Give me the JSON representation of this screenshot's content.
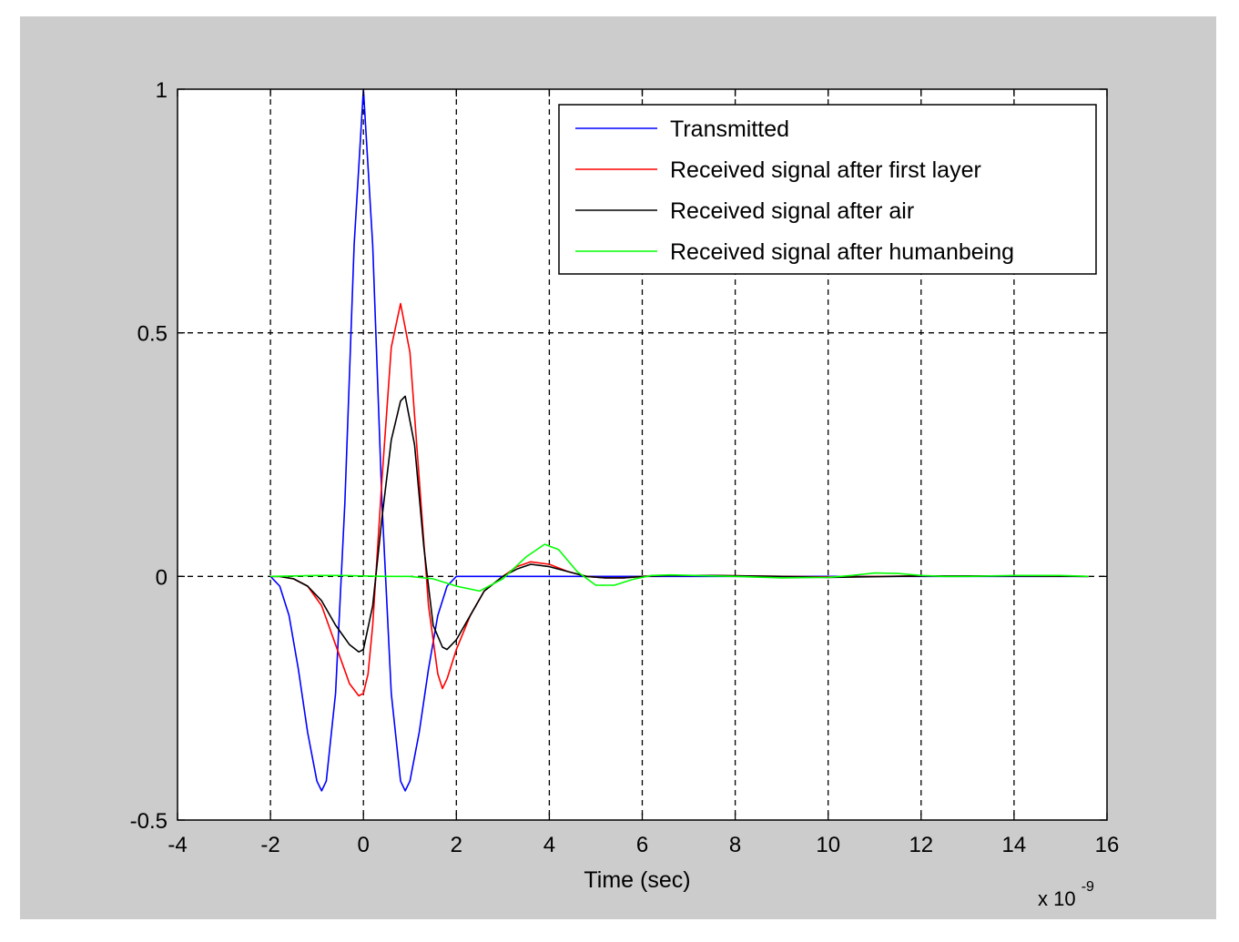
{
  "chart_data": {
    "type": "line",
    "title": "",
    "xlabel": "Time (sec)",
    "ylabel": "",
    "x_exponent_base": "x 10",
    "x_exponent_power": "-9",
    "xlim": [
      -4,
      16
    ],
    "ylim": [
      -0.5,
      1
    ],
    "xticks": [
      -4,
      -2,
      0,
      2,
      4,
      6,
      8,
      10,
      12,
      14,
      16
    ],
    "yticks": [
      -0.5,
      0,
      0.5,
      1
    ],
    "xtick_labels": [
      "-4",
      "-2",
      "0",
      "2",
      "4",
      "6",
      "8",
      "10",
      "12",
      "14",
      "16"
    ],
    "ytick_labels": [
      "-0.5",
      "0",
      "0.5",
      "1"
    ],
    "grid": true,
    "legend_position": "top-right",
    "series": [
      {
        "name": "Transmitted",
        "color": "#0000ff",
        "x": [
          -2.0,
          -1.8,
          -1.6,
          -1.4,
          -1.2,
          -1.0,
          -0.9,
          -0.8,
          -0.6,
          -0.4,
          -0.2,
          0.0,
          0.2,
          0.4,
          0.6,
          0.8,
          0.9,
          1.0,
          1.2,
          1.4,
          1.6,
          1.8,
          2.0,
          2.2,
          2.6,
          3.0,
          3.5,
          4.0,
          5.0,
          6.0,
          6.5,
          7.5,
          9.0,
          10.0,
          12.0,
          14.0,
          15.6
        ],
        "y": [
          0.0,
          -0.02,
          -0.08,
          -0.19,
          -0.32,
          -0.42,
          -0.44,
          -0.42,
          -0.24,
          0.15,
          0.68,
          1.0,
          0.68,
          0.15,
          -0.24,
          -0.42,
          -0.44,
          -0.42,
          -0.32,
          -0.19,
          -0.08,
          -0.02,
          0.0,
          0.0,
          0.0,
          0.0,
          0.0,
          0.0,
          0.0,
          0.0,
          0.0,
          0.0,
          0.0,
          0.0,
          0.0,
          0.0,
          0.0
        ]
      },
      {
        "name": "Received signal after first layer",
        "color": "#ff0000",
        "x": [
          -2.0,
          -1.8,
          -1.5,
          -1.2,
          -0.9,
          -0.6,
          -0.3,
          -0.1,
          0.0,
          0.1,
          0.2,
          0.4,
          0.6,
          0.8,
          1.0,
          1.2,
          1.4,
          1.6,
          1.7,
          1.8,
          2.0,
          2.3,
          2.6,
          3.0,
          3.3,
          3.6,
          4.0,
          4.4,
          4.8,
          5.2,
          5.6,
          6.0,
          6.5,
          7.5,
          9.0,
          10.0,
          12.0,
          14.0,
          15.6
        ],
        "y": [
          0.0,
          0.0,
          -0.005,
          -0.02,
          -0.06,
          -0.14,
          -0.22,
          -0.245,
          -0.24,
          -0.2,
          -0.1,
          0.2,
          0.47,
          0.56,
          0.46,
          0.2,
          -0.06,
          -0.2,
          -0.23,
          -0.21,
          -0.15,
          -0.08,
          -0.03,
          0.0,
          0.02,
          0.03,
          0.025,
          0.01,
          0.0,
          -0.003,
          -0.003,
          0.0,
          0.002,
          0.002,
          0.0,
          -0.001,
          0.001,
          0.001,
          0.0
        ]
      },
      {
        "name": "Received signal after air",
        "color": "#000000",
        "x": [
          -2.0,
          -1.8,
          -1.5,
          -1.2,
          -0.9,
          -0.6,
          -0.3,
          -0.1,
          0.0,
          0.2,
          0.4,
          0.6,
          0.8,
          0.9,
          1.1,
          1.3,
          1.5,
          1.7,
          1.8,
          2.0,
          2.3,
          2.6,
          3.0,
          3.3,
          3.6,
          4.0,
          4.4,
          4.8,
          5.2,
          5.6,
          6.0,
          6.5,
          7.5,
          9.0,
          10.0,
          12.0,
          14.0,
          15.6
        ],
        "y": [
          0.0,
          0.0,
          -0.005,
          -0.02,
          -0.05,
          -0.1,
          -0.14,
          -0.155,
          -0.15,
          -0.06,
          0.12,
          0.28,
          0.36,
          0.37,
          0.27,
          0.06,
          -0.1,
          -0.145,
          -0.15,
          -0.13,
          -0.08,
          -0.03,
          0.0,
          0.015,
          0.025,
          0.02,
          0.01,
          0.0,
          -0.003,
          -0.003,
          0.0,
          0.002,
          0.002,
          0.0,
          -0.002,
          0.001,
          0.001,
          0.0
        ]
      },
      {
        "name": "Received signal after humanbeing",
        "color": "#00ff00",
        "x": [
          -2.0,
          -1.5,
          -1.0,
          -0.5,
          0.0,
          0.5,
          1.0,
          1.5,
          2.0,
          2.5,
          3.0,
          3.5,
          3.9,
          4.2,
          4.6,
          5.0,
          5.4,
          5.8,
          6.2,
          6.6,
          7.5,
          8.0,
          9.0,
          10.0,
          10.5,
          11.0,
          11.5,
          12.0,
          12.5,
          13.0,
          14.0,
          15.0,
          15.6
        ],
        "y": [
          0.0,
          0.001,
          0.002,
          0.002,
          0.001,
          0.0,
          0.0,
          -0.005,
          -0.02,
          -0.03,
          -0.005,
          0.04,
          0.066,
          0.055,
          0.01,
          -0.018,
          -0.018,
          -0.006,
          0.002,
          0.003,
          0.001,
          0.0,
          -0.003,
          -0.002,
          0.002,
          0.007,
          0.006,
          0.002,
          0.0,
          0.0,
          0.002,
          0.002,
          0.0
        ]
      }
    ]
  }
}
